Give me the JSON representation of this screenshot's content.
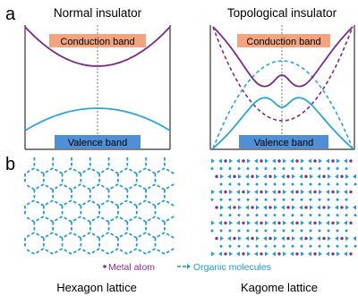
{
  "panel_a": {
    "label": "a",
    "left": {
      "title": "Normal insulator",
      "conduction_label": "Conduction band",
      "valence_label": "Valence band"
    },
    "right": {
      "title": "Topological insulator",
      "conduction_label": "Conduction band",
      "valence_label": "Valence band"
    }
  },
  "panel_b": {
    "label": "b",
    "legend": {
      "metal_atom": "Metal atom",
      "organic_molecules": "Organic molecules"
    },
    "left_caption": "Hexagon lattice",
    "right_caption": "Kagome lattice"
  },
  "colors": {
    "conduction_band": "#7b2c84",
    "valence_band": "#2aa6d8",
    "conduction_box": "#f3a47f",
    "valence_box": "#4f8fd8",
    "metal_atom": "#8e2c8e",
    "organic_molecule": "#1f9ad6",
    "dashed_axis": "#777777",
    "frame": "#333333"
  }
}
